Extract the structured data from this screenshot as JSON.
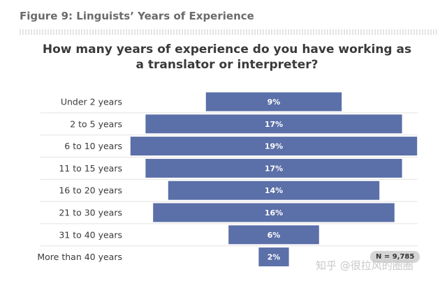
{
  "figure_title": "Figure 9: Linguists’ Years of Experience",
  "sample_note": "N = 9,785",
  "watermark": "知乎 @很拉风的圈圈",
  "colors": {
    "bar": "#5b6fa8",
    "separator": "#e2e2e2"
  },
  "chart_data": {
    "type": "bar",
    "orientation": "horizontal-centered",
    "title": "How many years of experience do you have working as a translator or interpreter?",
    "categories": [
      "Under 2 years",
      "2 to 5 years",
      "6 to 10 years",
      "11 to 15 years",
      "16 to 20 years",
      "21 to 30 years",
      "31 to 40 years",
      "More than 40 years"
    ],
    "values": [
      9,
      17,
      19,
      17,
      14,
      16,
      6,
      2
    ],
    "value_labels": [
      "9%",
      "17%",
      "19%",
      "17%",
      "14%",
      "16%",
      "6%",
      "2%"
    ],
    "unit": "%",
    "grid": false
  }
}
